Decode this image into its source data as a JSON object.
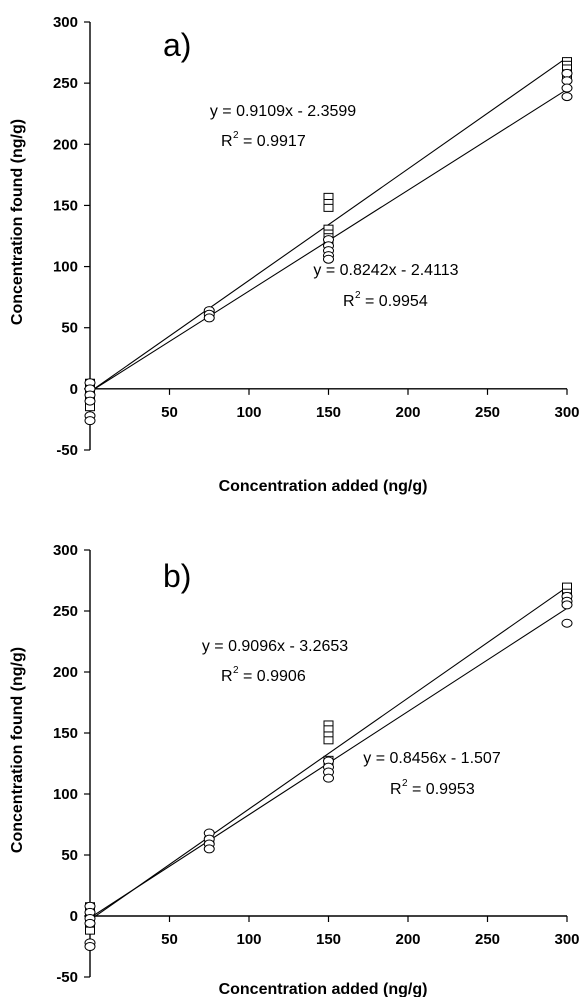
{
  "chart_data": [
    {
      "type": "scatter",
      "panel_label": "a)",
      "xlabel": "Concentration added (ng/g)",
      "ylabel": "Concentration found (ng/g)",
      "xlim": [
        0,
        300
      ],
      "ylim": [
        -50,
        300
      ],
      "x_ticks": [
        50,
        100,
        150,
        200,
        250,
        300
      ],
      "y_ticks": [
        -50,
        0,
        50,
        100,
        150,
        200,
        250,
        300
      ],
      "grid": false,
      "series": [
        {
          "marker": "square",
          "fit": {
            "slope": 0.9109,
            "intercept": -2.3599,
            "label": "y = 0.9109x - 2.3599",
            "r2_prefix": "R",
            "r2_value": "= 0.9917"
          },
          "points": [
            [
              0,
              5
            ],
            [
              0,
              2
            ],
            [
              0,
              -2
            ],
            [
              0,
              -5
            ],
            [
              0,
              -8
            ],
            [
              0,
              -12
            ],
            [
              0,
              -15
            ],
            [
              75,
              62
            ],
            [
              75,
              60
            ],
            [
              150,
              157
            ],
            [
              150,
              152
            ],
            [
              150,
              148
            ],
            [
              150,
              131
            ],
            [
              150,
              127
            ],
            [
              150,
              124
            ],
            [
              150,
              120
            ],
            [
              300,
              268
            ],
            [
              300,
              265
            ],
            [
              300,
              262
            ],
            [
              300,
              258
            ],
            [
              300,
              255
            ]
          ]
        },
        {
          "marker": "circle",
          "fit": {
            "slope": 0.8242,
            "intercept": -2.4113,
            "label": "y = 0.8242x - 2.4113",
            "r2_prefix": "R",
            "r2_value": "= 0.9954"
          },
          "points": [
            [
              0,
              5
            ],
            [
              0,
              0
            ],
            [
              0,
              -5
            ],
            [
              0,
              -10
            ],
            [
              0,
              -22
            ],
            [
              0,
              -26
            ],
            [
              75,
              64
            ],
            [
              75,
              61
            ],
            [
              75,
              58
            ],
            [
              150,
              122
            ],
            [
              150,
              117
            ],
            [
              150,
              113
            ],
            [
              150,
              109
            ],
            [
              150,
              106
            ],
            [
              300,
              258
            ],
            [
              300,
              252
            ],
            [
              300,
              246
            ],
            [
              300,
              239
            ]
          ]
        }
      ]
    },
    {
      "type": "scatter",
      "panel_label": "b)",
      "xlabel": "Concentration added (ng/g)",
      "ylabel": "Concentration found (ng/g)",
      "xlim": [
        0,
        300
      ],
      "ylim": [
        -50,
        300
      ],
      "x_ticks": [
        50,
        100,
        150,
        200,
        250,
        300
      ],
      "y_ticks": [
        -50,
        0,
        50,
        100,
        150,
        200,
        250,
        300
      ],
      "grid": false,
      "series": [
        {
          "marker": "square",
          "fit": {
            "slope": 0.9096,
            "intercept": -3.2653,
            "label": "y = 0.9096x - 3.2653",
            "r2_prefix": "R",
            "r2_value": "= 0.9906"
          },
          "points": [
            [
              0,
              8
            ],
            [
              0,
              4
            ],
            [
              0,
              0
            ],
            [
              0,
              -4
            ],
            [
              0,
              -8
            ],
            [
              0,
              -12
            ],
            [
              75,
              62
            ],
            [
              150,
              157
            ],
            [
              150,
              153
            ],
            [
              150,
              148
            ],
            [
              150,
              144
            ],
            [
              150,
              128
            ],
            [
              150,
              125
            ],
            [
              300,
              270
            ],
            [
              300,
              265
            ],
            [
              300,
              262
            ],
            [
              300,
              258
            ]
          ]
        },
        {
          "marker": "circle",
          "fit": {
            "slope": 0.8456,
            "intercept": -1.507,
            "label": "y = 0.8456x - 1.507",
            "r2_prefix": "R",
            "r2_value": "= 0.9953"
          },
          "points": [
            [
              0,
              8
            ],
            [
              0,
              3
            ],
            [
              0,
              -2
            ],
            [
              0,
              -6
            ],
            [
              0,
              -22
            ],
            [
              0,
              -25
            ],
            [
              75,
              68
            ],
            [
              75,
              63
            ],
            [
              75,
              59
            ],
            [
              75,
              55
            ],
            [
              150,
              127
            ],
            [
              150,
              122
            ],
            [
              150,
              118
            ],
            [
              150,
              113
            ],
            [
              300,
              262
            ],
            [
              300,
              258
            ],
            [
              300,
              255
            ],
            [
              300,
              240
            ]
          ]
        }
      ]
    }
  ]
}
